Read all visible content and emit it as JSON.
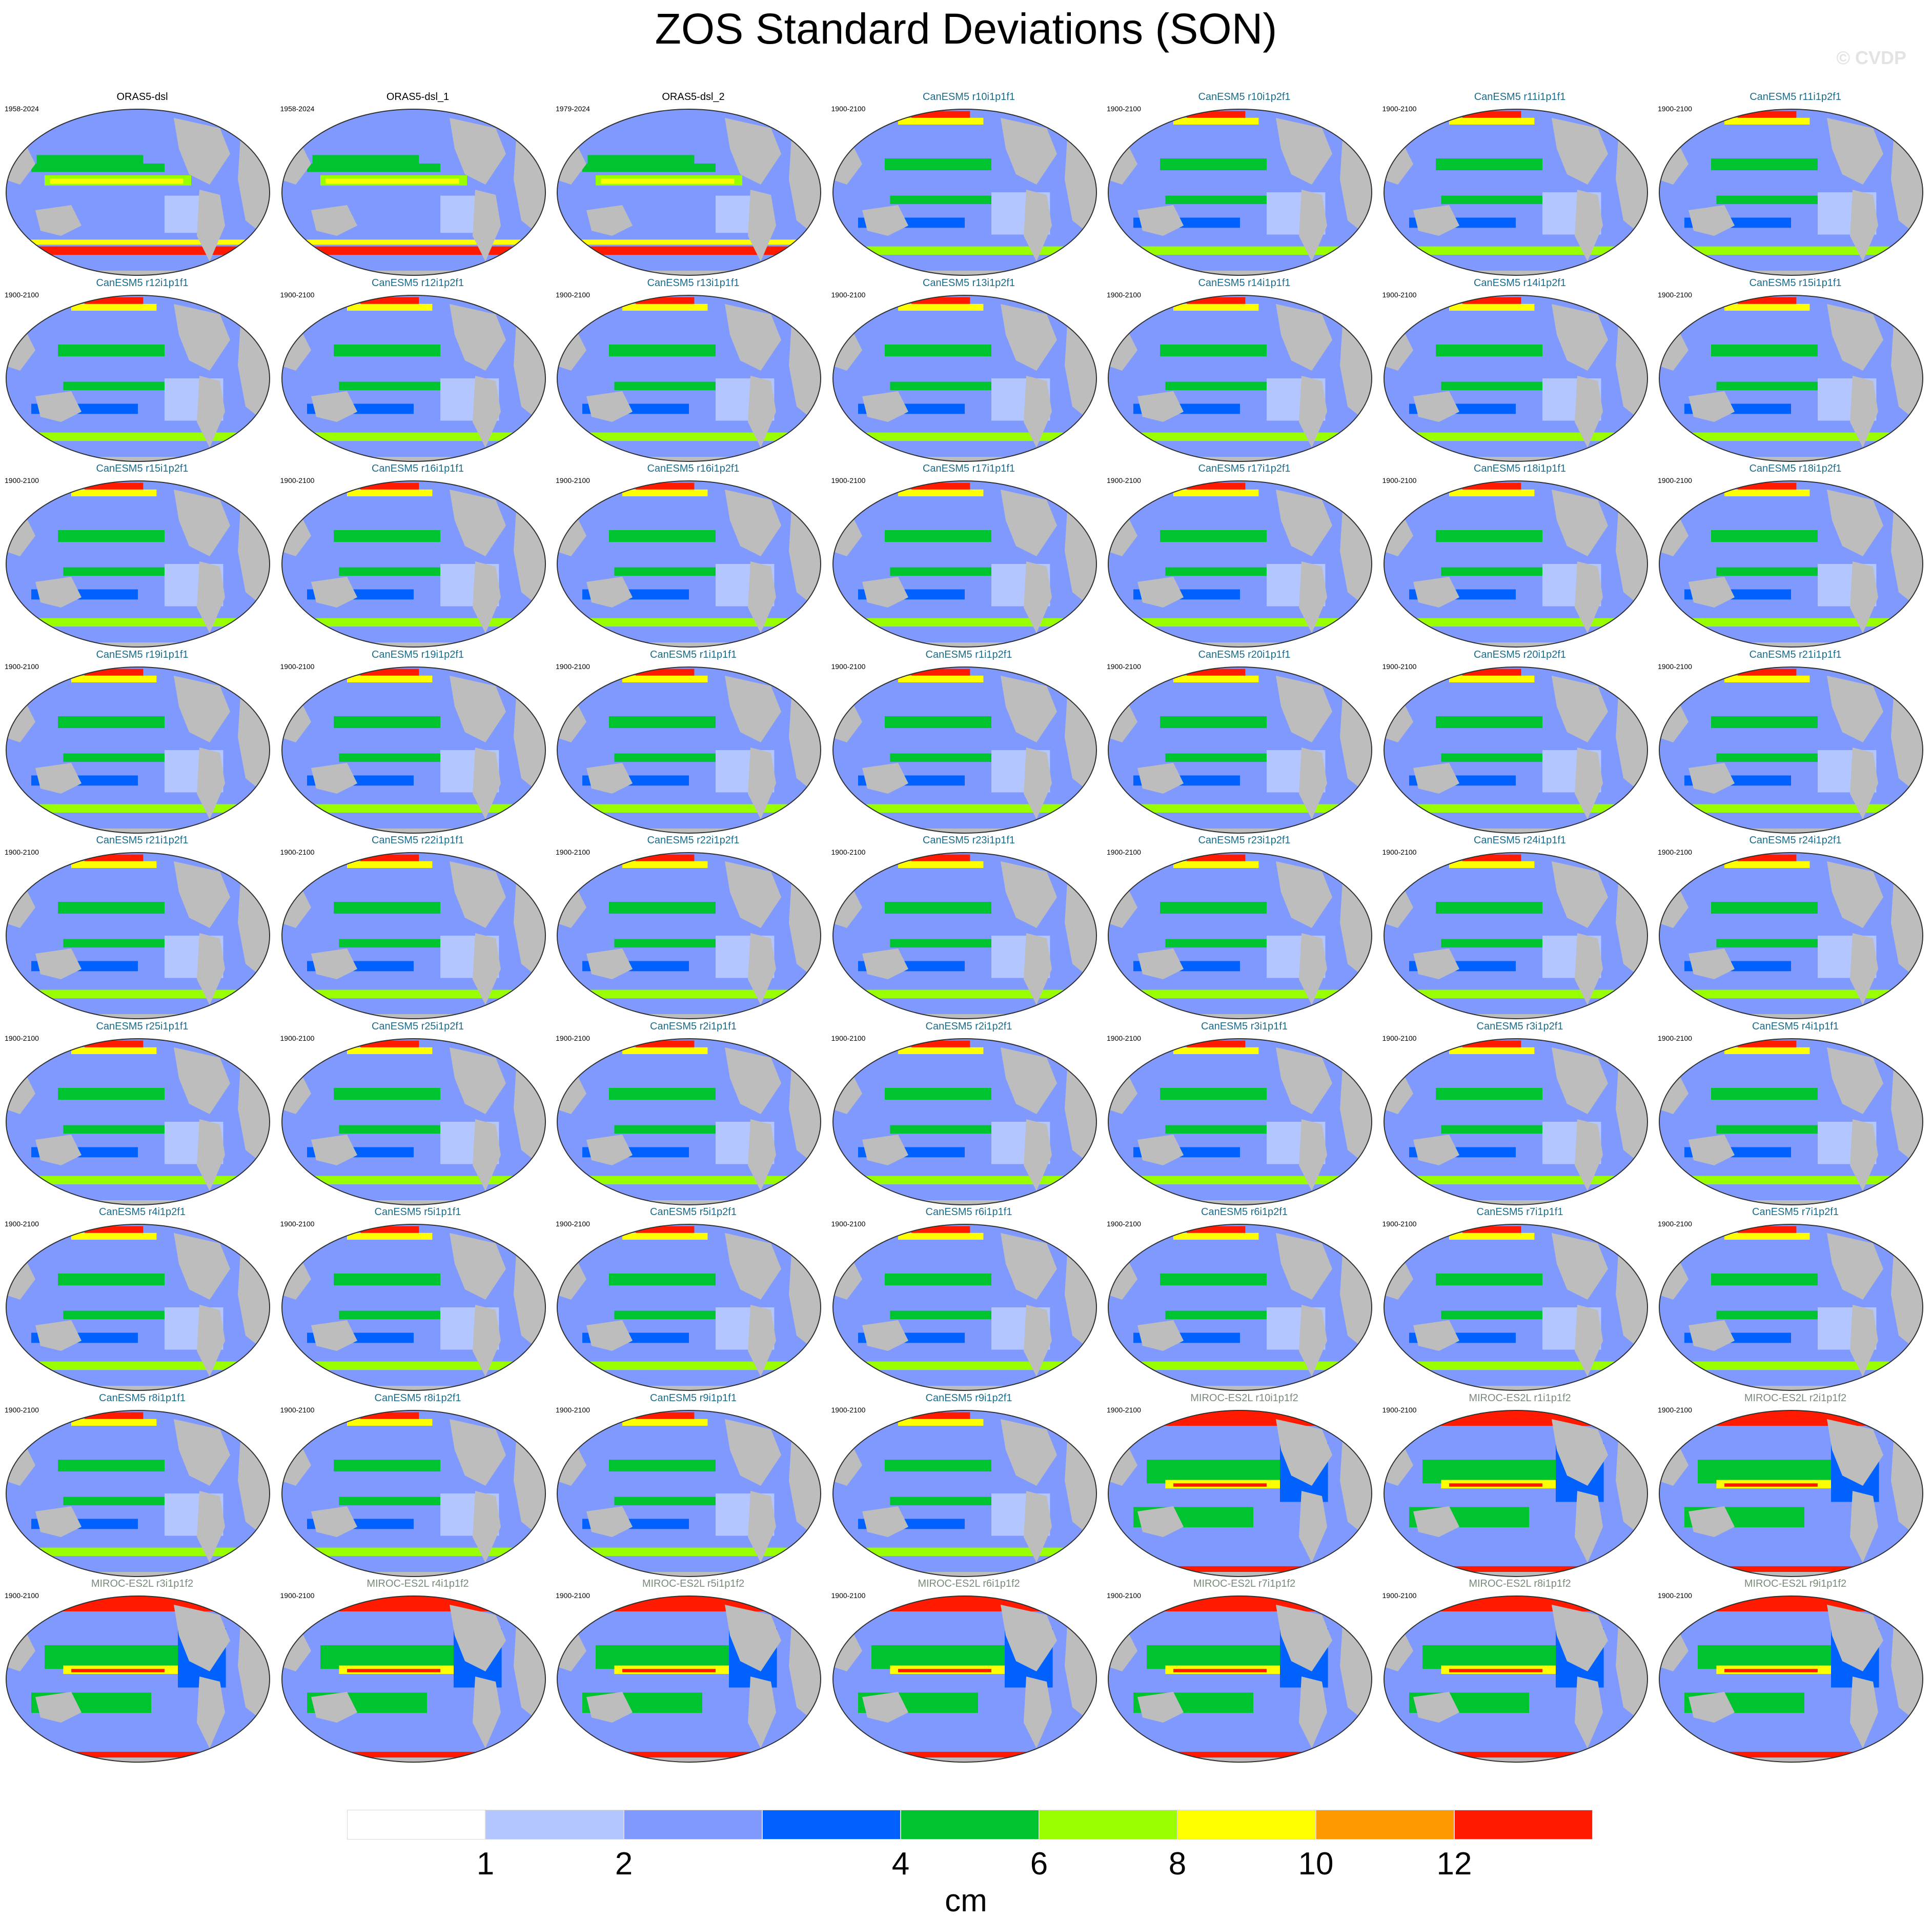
{
  "title": "ZOS Standard Deviations (SON)",
  "copyright": "© CVDP",
  "colors": {
    "title_obs": "#000000",
    "title_canesm5": "#1a6c8c",
    "title_miroc": "#7a8a7a",
    "land": "#bdbdbd",
    "outline": "#303030"
  },
  "panels": [
    {
      "title": "ORAS5-dsl",
      "years": "1958-2024",
      "group": "obs"
    },
    {
      "title": "ORAS5-dsl_1",
      "years": "1958-2024",
      "group": "obs"
    },
    {
      "title": "ORAS5-dsl_2",
      "years": "1979-2024",
      "group": "obs"
    },
    {
      "title": "CanESM5 r10i1p1f1",
      "years": "1900-2100",
      "group": "canesm5"
    },
    {
      "title": "CanESM5 r10i1p2f1",
      "years": "1900-2100",
      "group": "canesm5"
    },
    {
      "title": "CanESM5 r11i1p1f1",
      "years": "1900-2100",
      "group": "canesm5"
    },
    {
      "title": "CanESM5 r11i1p2f1",
      "years": "1900-2100",
      "group": "canesm5"
    },
    {
      "title": "CanESM5 r12i1p1f1",
      "years": "1900-2100",
      "group": "canesm5"
    },
    {
      "title": "CanESM5 r12i1p2f1",
      "years": "1900-2100",
      "group": "canesm5"
    },
    {
      "title": "CanESM5 r13i1p1f1",
      "years": "1900-2100",
      "group": "canesm5"
    },
    {
      "title": "CanESM5 r13i1p2f1",
      "years": "1900-2100",
      "group": "canesm5"
    },
    {
      "title": "CanESM5 r14i1p1f1",
      "years": "1900-2100",
      "group": "canesm5"
    },
    {
      "title": "CanESM5 r14i1p2f1",
      "years": "1900-2100",
      "group": "canesm5"
    },
    {
      "title": "CanESM5 r15i1p1f1",
      "years": "1900-2100",
      "group": "canesm5"
    },
    {
      "title": "CanESM5 r15i1p2f1",
      "years": "1900-2100",
      "group": "canesm5"
    },
    {
      "title": "CanESM5 r16i1p1f1",
      "years": "1900-2100",
      "group": "canesm5"
    },
    {
      "title": "CanESM5 r16i1p2f1",
      "years": "1900-2100",
      "group": "canesm5"
    },
    {
      "title": "CanESM5 r17i1p1f1",
      "years": "1900-2100",
      "group": "canesm5"
    },
    {
      "title": "CanESM5 r17i1p2f1",
      "years": "1900-2100",
      "group": "canesm5"
    },
    {
      "title": "CanESM5 r18i1p1f1",
      "years": "1900-2100",
      "group": "canesm5"
    },
    {
      "title": "CanESM5 r18i1p2f1",
      "years": "1900-2100",
      "group": "canesm5"
    },
    {
      "title": "CanESM5 r19i1p1f1",
      "years": "1900-2100",
      "group": "canesm5"
    },
    {
      "title": "CanESM5 r19i1p2f1",
      "years": "1900-2100",
      "group": "canesm5"
    },
    {
      "title": "CanESM5 r1i1p1f1",
      "years": "1900-2100",
      "group": "canesm5"
    },
    {
      "title": "CanESM5 r1i1p2f1",
      "years": "1900-2100",
      "group": "canesm5"
    },
    {
      "title": "CanESM5 r20i1p1f1",
      "years": "1900-2100",
      "group": "canesm5"
    },
    {
      "title": "CanESM5 r20i1p2f1",
      "years": "1900-2100",
      "group": "canesm5"
    },
    {
      "title": "CanESM5 r21i1p1f1",
      "years": "1900-2100",
      "group": "canesm5"
    },
    {
      "title": "CanESM5 r21i1p2f1",
      "years": "1900-2100",
      "group": "canesm5"
    },
    {
      "title": "CanESM5 r22i1p1f1",
      "years": "1900-2100",
      "group": "canesm5"
    },
    {
      "title": "CanESM5 r22i1p2f1",
      "years": "1900-2100",
      "group": "canesm5"
    },
    {
      "title": "CanESM5 r23i1p1f1",
      "years": "1900-2100",
      "group": "canesm5"
    },
    {
      "title": "CanESM5 r23i1p2f1",
      "years": "1900-2100",
      "group": "canesm5"
    },
    {
      "title": "CanESM5 r24i1p1f1",
      "years": "1900-2100",
      "group": "canesm5"
    },
    {
      "title": "CanESM5 r24i1p2f1",
      "years": "1900-2100",
      "group": "canesm5"
    },
    {
      "title": "CanESM5 r25i1p1f1",
      "years": "1900-2100",
      "group": "canesm5"
    },
    {
      "title": "CanESM5 r25i1p2f1",
      "years": "1900-2100",
      "group": "canesm5"
    },
    {
      "title": "CanESM5 r2i1p1f1",
      "years": "1900-2100",
      "group": "canesm5"
    },
    {
      "title": "CanESM5 r2i1p2f1",
      "years": "1900-2100",
      "group": "canesm5"
    },
    {
      "title": "CanESM5 r3i1p1f1",
      "years": "1900-2100",
      "group": "canesm5"
    },
    {
      "title": "CanESM5 r3i1p2f1",
      "years": "1900-2100",
      "group": "canesm5"
    },
    {
      "title": "CanESM5 r4i1p1f1",
      "years": "1900-2100",
      "group": "canesm5"
    },
    {
      "title": "CanESM5 r4i1p2f1",
      "years": "1900-2100",
      "group": "canesm5"
    },
    {
      "title": "CanESM5 r5i1p1f1",
      "years": "1900-2100",
      "group": "canesm5"
    },
    {
      "title": "CanESM5 r5i1p2f1",
      "years": "1900-2100",
      "group": "canesm5"
    },
    {
      "title": "CanESM5 r6i1p1f1",
      "years": "1900-2100",
      "group": "canesm5"
    },
    {
      "title": "CanESM5 r6i1p2f1",
      "years": "1900-2100",
      "group": "canesm5"
    },
    {
      "title": "CanESM5 r7i1p1f1",
      "years": "1900-2100",
      "group": "canesm5"
    },
    {
      "title": "CanESM5 r7i1p2f1",
      "years": "1900-2100",
      "group": "canesm5"
    },
    {
      "title": "CanESM5 r8i1p1f1",
      "years": "1900-2100",
      "group": "canesm5"
    },
    {
      "title": "CanESM5 r8i1p2f1",
      "years": "1900-2100",
      "group": "canesm5"
    },
    {
      "title": "CanESM5 r9i1p1f1",
      "years": "1900-2100",
      "group": "canesm5"
    },
    {
      "title": "CanESM5 r9i1p2f1",
      "years": "1900-2100",
      "group": "canesm5"
    },
    {
      "title": "MIROC-ES2L r10i1p1f2",
      "years": "1900-2100",
      "group": "miroc"
    },
    {
      "title": "MIROC-ES2L r1i1p1f2",
      "years": "1900-2100",
      "group": "miroc"
    },
    {
      "title": "MIROC-ES2L r2i1p1f2",
      "years": "1900-2100",
      "group": "miroc"
    },
    {
      "title": "MIROC-ES2L r3i1p1f2",
      "years": "1900-2100",
      "group": "miroc"
    },
    {
      "title": "MIROC-ES2L r4i1p1f2",
      "years": "1900-2100",
      "group": "miroc"
    },
    {
      "title": "MIROC-ES2L r5i1p1f2",
      "years": "1900-2100",
      "group": "miroc"
    },
    {
      "title": "MIROC-ES2L r6i1p1f2",
      "years": "1900-2100",
      "group": "miroc"
    },
    {
      "title": "MIROC-ES2L r7i1p1f2",
      "years": "1900-2100",
      "group": "miroc"
    },
    {
      "title": "MIROC-ES2L r8i1p1f2",
      "years": "1900-2100",
      "group": "miroc"
    },
    {
      "title": "MIROC-ES2L r9i1p1f2",
      "years": "1900-2100",
      "group": "miroc"
    }
  ],
  "colorbar": {
    "units": "cm",
    "labels": [
      "1",
      "2",
      "4",
      "6",
      "8",
      "10",
      "12"
    ],
    "label_box_index": [
      1,
      2,
      4,
      5,
      6,
      7,
      8
    ],
    "colors": [
      "#ffffff",
      "#b3c6ff",
      "#8099ff",
      "#0061ff",
      "#00c42f",
      "#99ff00",
      "#ffff00",
      "#ff9900",
      "#ff1a00"
    ]
  }
}
